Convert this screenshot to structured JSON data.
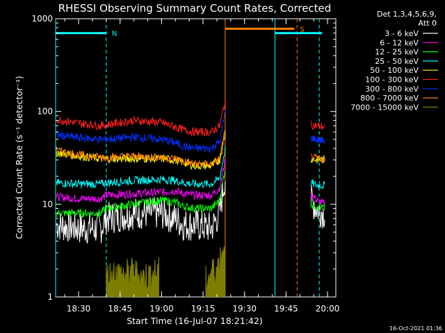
{
  "chart_data": {
    "type": "line",
    "title": "RHESSI Observing Summary Count Rates, Corrected",
    "xlabel": "Start Time (16-Jul-07 18:21:42)",
    "ylabel": "Corrected Count Rate (s⁻¹ detector⁻¹)",
    "yscale": "log",
    "ylim": [
      1,
      1000
    ],
    "xlim": [
      "18:21:42",
      "20:03:00"
    ],
    "x_ticks": [
      "18:30",
      "18:45",
      "19:00",
      "19:15",
      "19:30",
      "19:45",
      "20:00"
    ],
    "y_ticks": [
      "1",
      "10",
      "100",
      "1000"
    ],
    "legend_header": [
      "Det 1,3,4,5,6,9,",
      "Att 0"
    ],
    "legend_placement": "right",
    "series": [
      {
        "name": "3 - 6 keV",
        "color": "#ffffff",
        "x": [
          "18:22",
          "18:30",
          "18:38",
          "18:40",
          "18:50",
          "19:00",
          "19:05",
          "19:08",
          "19:12",
          "19:18",
          "19:21",
          "19:23",
          "19:54",
          "19:56",
          "19:59"
        ],
        "values": [
          6,
          5.5,
          5.5,
          7,
          8,
          8,
          7,
          6,
          6,
          5.5,
          8,
          20,
          11,
          9,
          8
        ]
      },
      {
        "name": "6 - 12 keV",
        "color": "#ff00ff",
        "x": [
          "18:22",
          "18:30",
          "18:38",
          "18:40",
          "18:50",
          "19:00",
          "19:05",
          "19:08",
          "19:12",
          "19:18",
          "19:21",
          "19:23",
          "19:54",
          "19:56",
          "19:59"
        ],
        "values": [
          12,
          11.5,
          11.5,
          12.5,
          13,
          13.5,
          14,
          13,
          12.5,
          12.5,
          15,
          30,
          13,
          11,
          10
        ]
      },
      {
        "name": "12 - 25 keV",
        "color": "#00ff00",
        "x": [
          "18:22",
          "18:30",
          "18:38",
          "18:40",
          "18:50",
          "19:00",
          "19:05",
          "19:08",
          "19:12",
          "19:18",
          "19:21",
          "19:23",
          "19:54",
          "19:56",
          "19:59"
        ],
        "values": [
          8,
          8,
          8,
          9,
          10,
          11,
          10.5,
          9.5,
          9,
          9,
          11,
          25,
          10,
          9.5,
          9
        ]
      },
      {
        "name": "25 - 50 keV",
        "color": "#00ffff",
        "x": [
          "18:22",
          "18:30",
          "18:38",
          "18:40",
          "18:50",
          "19:00",
          "19:05",
          "19:08",
          "19:12",
          "19:18",
          "19:21",
          "19:23",
          "19:54",
          "19:56",
          "19:59"
        ],
        "values": [
          17,
          16.5,
          16.5,
          17,
          18,
          18.5,
          18,
          17,
          16.5,
          16.5,
          19,
          40,
          17,
          16,
          16
        ]
      },
      {
        "name": "50 - 100 keV",
        "color": "#ffff00",
        "x": [
          "18:22",
          "18:30",
          "18:38",
          "18:40",
          "18:50",
          "19:00",
          "19:05",
          "19:08",
          "19:12",
          "19:18",
          "19:21",
          "19:23",
          "19:54",
          "19:56",
          "19:59"
        ],
        "values": [
          36,
          33,
          31,
          31,
          31,
          31,
          30,
          28,
          26,
          26,
          30,
          60,
          31,
          30,
          30
        ]
      },
      {
        "name": "100 - 300 keV",
        "color": "#ff2020",
        "x": [
          "18:22",
          "18:30",
          "18:38",
          "18:40",
          "18:50",
          "19:00",
          "19:05",
          "19:08",
          "19:12",
          "19:18",
          "19:21",
          "19:23",
          "19:54",
          "19:56",
          "19:59"
        ],
        "values": [
          82,
          75,
          70,
          72,
          80,
          76,
          68,
          63,
          60,
          60,
          70,
          130,
          72,
          70,
          68
        ]
      },
      {
        "name": "300 - 800 keV",
        "color": "#0030ff",
        "x": [
          "18:22",
          "18:30",
          "18:38",
          "18:40",
          "18:50",
          "19:00",
          "19:05",
          "19:08",
          "19:12",
          "19:18",
          "19:21",
          "19:23",
          "19:54",
          "19:56",
          "19:59"
        ],
        "values": [
          56,
          52,
          50,
          50,
          53,
          50,
          46,
          42,
          40,
          40,
          47,
          100,
          52,
          50,
          48
        ]
      },
      {
        "name": "800 - 7000 keV",
        "color": "#ff8000",
        "x": [
          "18:22",
          "18:30",
          "18:38",
          "18:40",
          "18:50",
          "19:00",
          "19:05",
          "19:08",
          "19:12",
          "19:18",
          "19:21",
          "19:23",
          "19:54",
          "19:56",
          "19:59"
        ],
        "values": [
          38,
          34,
          32,
          32,
          33,
          32,
          31,
          29,
          27,
          27,
          31,
          62,
          32,
          31,
          30
        ]
      },
      {
        "name": "7000 - 15000 keV",
        "color": "#808000",
        "x": [
          "18:40",
          "18:43",
          "18:46",
          "18:50",
          "18:53",
          "18:56",
          "18:59",
          "19:16",
          "19:18",
          "19:20",
          "19:21",
          "19:23"
        ],
        "values": [
          1.6,
          1.8,
          1.7,
          1.8,
          1.6,
          1.7,
          1.8,
          1.5,
          1.8,
          2.0,
          2.5,
          4
        ]
      }
    ],
    "flags": [
      {
        "label": "N",
        "color": "#00ffff",
        "start": "18:21:42",
        "end": "18:40",
        "level": 700
      },
      {
        "label": "S",
        "color": "#ff8000",
        "start": "19:23",
        "end": "19:48",
        "level": 780
      },
      {
        "label": "",
        "color": "#00ffff",
        "start": "19:41",
        "end": "19:58",
        "level": 700
      }
    ],
    "vlines": [
      {
        "t": "18:21:42",
        "color": "#00ffff",
        "style": "solid"
      },
      {
        "t": "18:40",
        "color": "#00ffff",
        "style": "dashed"
      },
      {
        "t": "19:23",
        "color": "#ff8000",
        "style": "solid"
      },
      {
        "t": "19:41",
        "color": "#00ffff",
        "style": "solid"
      },
      {
        "t": "19:49",
        "color": "#ff8000",
        "style": "dashed"
      },
      {
        "t": "19:57",
        "color": "#00ffff",
        "style": "dashed"
      }
    ],
    "timestamp": "16-Oct-2021 01:36"
  }
}
